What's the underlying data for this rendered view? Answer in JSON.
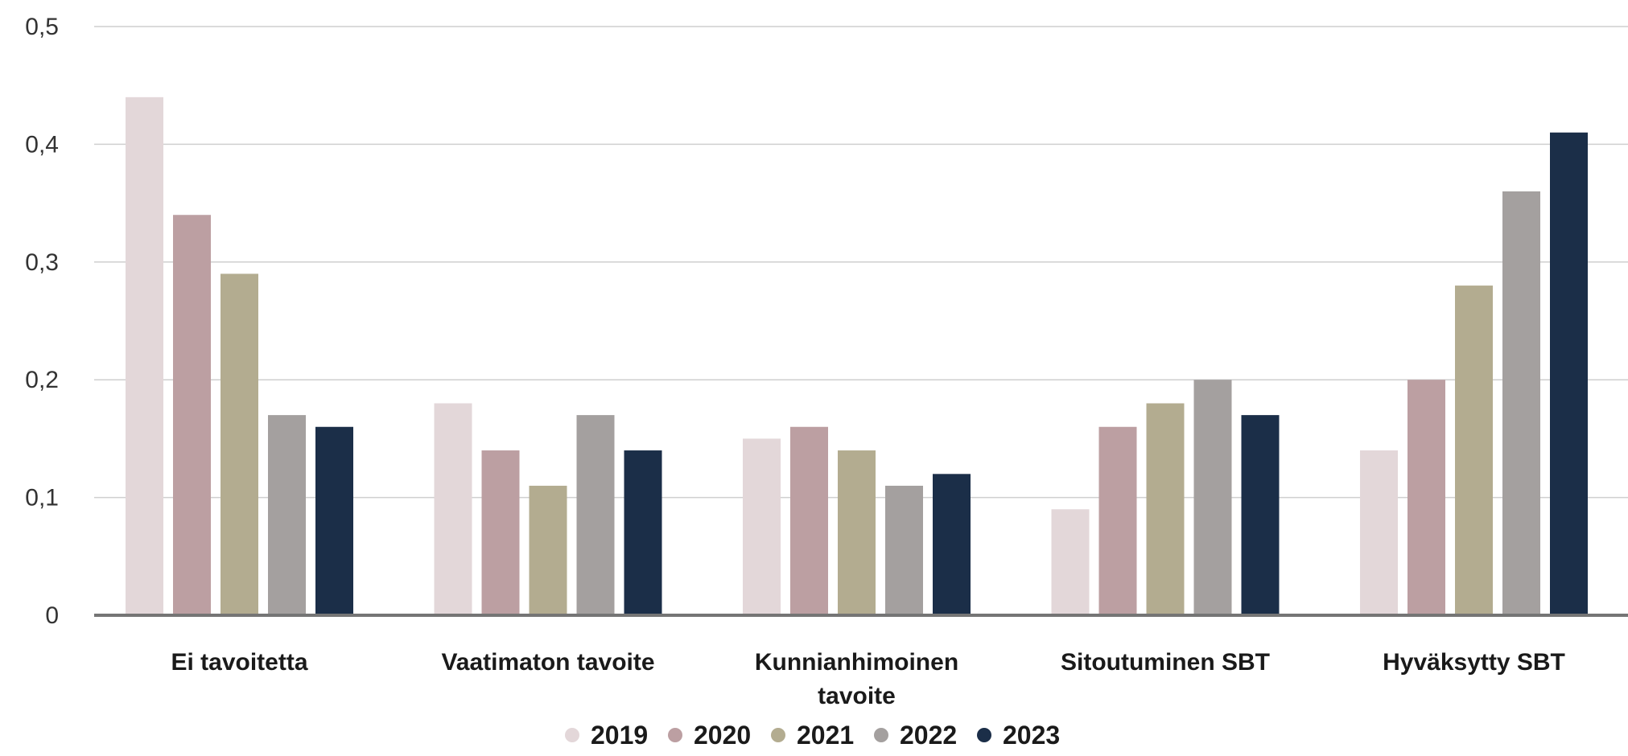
{
  "chart_data": {
    "type": "bar",
    "title": "",
    "xlabel": "",
    "ylabel": "",
    "categories": [
      [
        "Ei tavoitetta"
      ],
      [
        "Vaatimaton tavoite"
      ],
      [
        "Kunnianhimoinen",
        "tavoite"
      ],
      [
        "Sitoutuminen SBT"
      ],
      [
        "Hyväksytty SBT"
      ]
    ],
    "series": [
      {
        "name": "2019",
        "color": "#e3d7d9",
        "values": [
          0.44,
          0.18,
          0.15,
          0.09,
          0.14
        ]
      },
      {
        "name": "2020",
        "color": "#bc9fa2",
        "values": [
          0.34,
          0.14,
          0.16,
          0.16,
          0.2
        ]
      },
      {
        "name": "2021",
        "color": "#b3ac90",
        "values": [
          0.29,
          0.11,
          0.14,
          0.18,
          0.28
        ]
      },
      {
        "name": "2022",
        "color": "#a4a09f",
        "values": [
          0.17,
          0.17,
          0.11,
          0.2,
          0.36
        ]
      },
      {
        "name": "2023",
        "color": "#1b2e48",
        "values": [
          0.16,
          0.14,
          0.12,
          0.17,
          0.41
        ]
      }
    ],
    "ylim": [
      0,
      0.5
    ],
    "yticks": [
      0,
      0.1,
      0.2,
      0.3,
      0.4,
      0.5
    ],
    "ytick_labels": [
      "0",
      "0,1",
      "0,2",
      "0,3",
      "0,4",
      "0,5"
    ],
    "grid": true,
    "legend_position": "bottom-center"
  }
}
